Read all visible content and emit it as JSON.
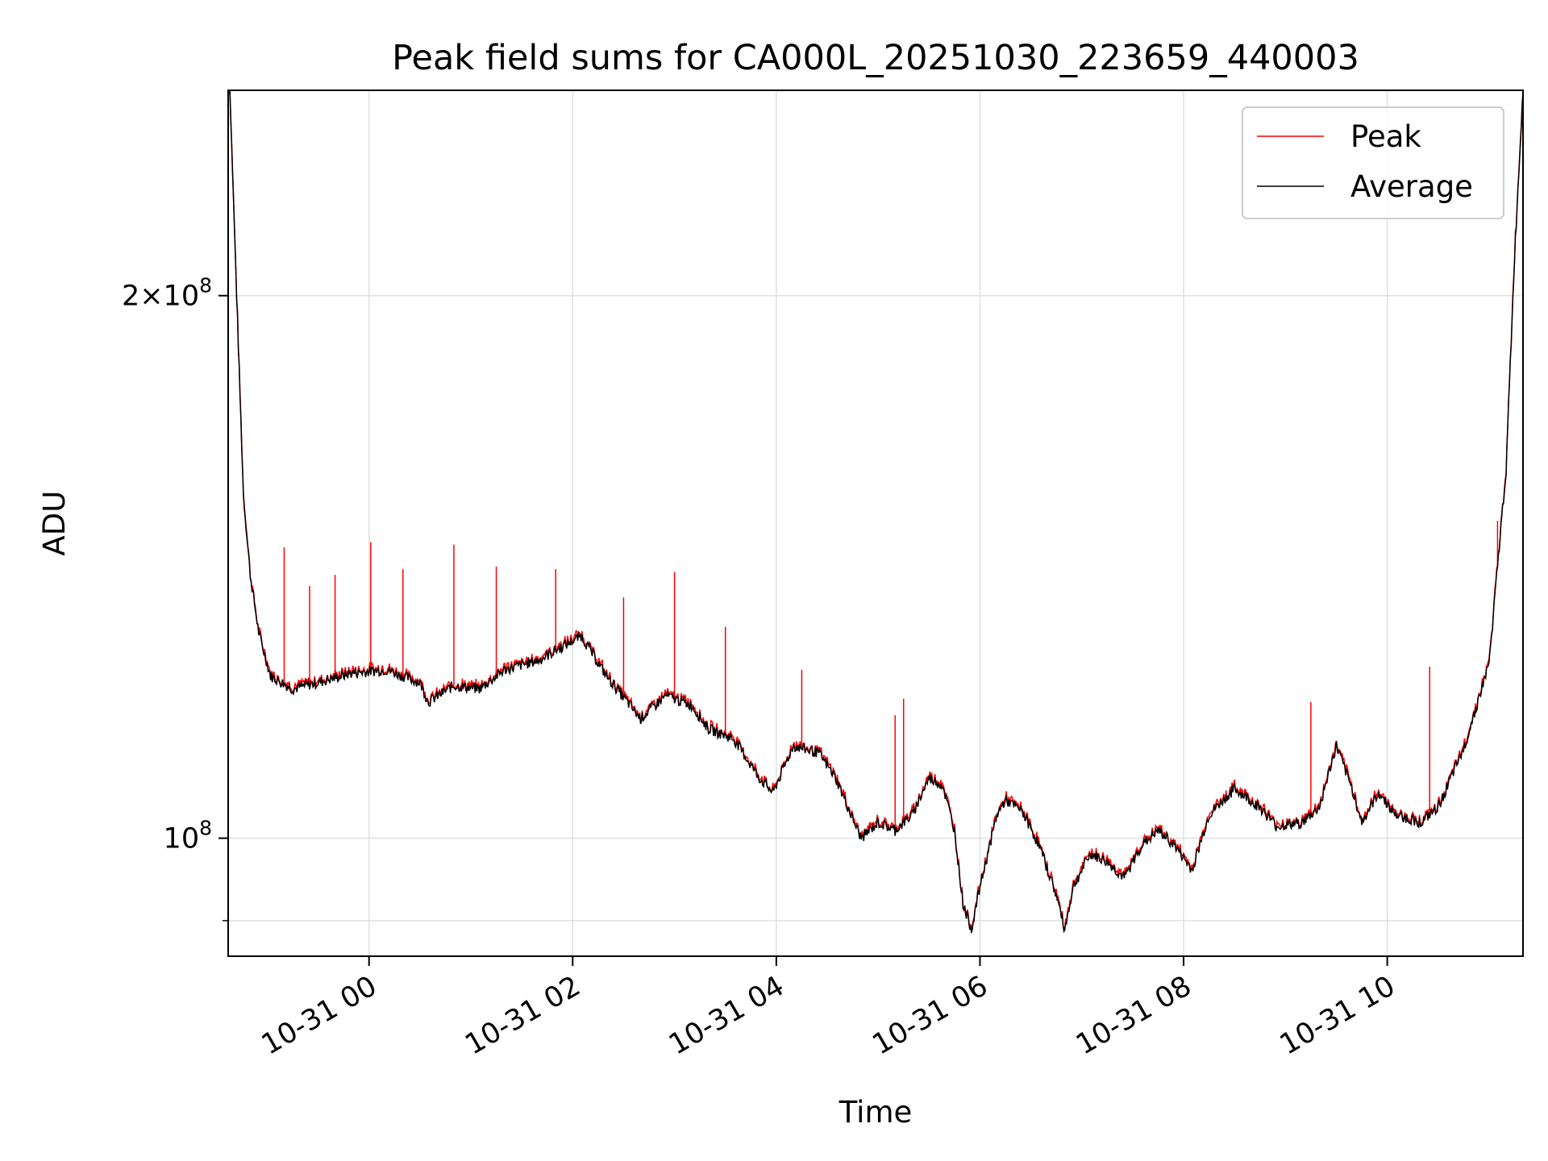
{
  "chart_data": {
    "type": "line",
    "title": "Peak field sums for CA000L_20251030_223659_440003",
    "xlabel": "Time",
    "ylabel": "ADU",
    "y_scale": "log",
    "x_range": [
      "10-30 22:37",
      "10-31 11:20"
    ],
    "ylim": [
      86000000.0,
      260000000.0
    ],
    "x_ticks": [
      "10-31 00",
      "10-31 02",
      "10-31 04",
      "10-31 06",
      "10-31 08",
      "10-31 10"
    ],
    "y_ticks": [
      {
        "value": 100000000,
        "base": "10",
        "exponent": "8",
        "mantissa": ""
      },
      {
        "value": 200000000,
        "base": "10",
        "exponent": "8",
        "mantissa": "2"
      }
    ],
    "grid": true,
    "legend_position": "top-right",
    "series": [
      {
        "name": "Peak",
        "color": "#ff0000"
      },
      {
        "name": "Average",
        "color": "#000000"
      }
    ],
    "average_profile": [
      [
        "10-30 22:38",
        260000000
      ],
      [
        "10-30 22:42",
        200000000
      ],
      [
        "10-30 22:46",
        155000000
      ],
      [
        "10-30 22:50",
        140000000
      ],
      [
        "10-30 22:55",
        130000000
      ],
      [
        "10-30 23:02",
        123000000
      ],
      [
        "10-30 23:15",
        121000000
      ],
      [
        "10-30 23:30",
        122000000
      ],
      [
        "10-30 23:50",
        123500000
      ],
      [
        "10-31 00:10",
        124000000
      ],
      [
        "10-31 00:30",
        122000000
      ],
      [
        "10-31 00:35",
        119000000
      ],
      [
        "10-31 00:50",
        121500000
      ],
      [
        "10-31 01:05",
        121000000
      ],
      [
        "10-31 01:20",
        124000000
      ],
      [
        "10-31 01:40",
        125500000
      ],
      [
        "10-31 02:05",
        129500000
      ],
      [
        "10-31 02:20",
        123000000
      ],
      [
        "10-31 02:40",
        116500000
      ],
      [
        "10-31 02:55",
        120000000
      ],
      [
        "10-31 03:10",
        118500000
      ],
      [
        "10-31 03:20",
        115000000
      ],
      [
        "10-31 03:35",
        113500000
      ],
      [
        "10-31 03:50",
        108000000
      ],
      [
        "10-31 03:58",
        106000000
      ],
      [
        "10-31 04:10",
        112500000
      ],
      [
        "10-31 04:25",
        111500000
      ],
      [
        "10-31 04:35",
        108000000
      ],
      [
        "10-31 04:45",
        102500000
      ],
      [
        "10-31 04:50",
        100000000
      ],
      [
        "10-31 05:00",
        102000000
      ],
      [
        "10-31 05:10",
        101000000
      ],
      [
        "10-31 05:20",
        103000000
      ],
      [
        "10-31 05:30",
        108000000
      ],
      [
        "10-31 05:38",
        107000000
      ],
      [
        "10-31 05:45",
        101000000
      ],
      [
        "10-31 05:50",
        92000000
      ],
      [
        "10-31 05:55",
        89000000
      ],
      [
        "10-31 06:00",
        94000000
      ],
      [
        "10-31 06:10",
        103000000
      ],
      [
        "10-31 06:15",
        105000000
      ],
      [
        "10-31 06:25",
        103500000
      ],
      [
        "10-31 06:35",
        99000000
      ],
      [
        "10-31 06:45",
        93000000
      ],
      [
        "10-31 06:50",
        89000000
      ],
      [
        "10-31 06:55",
        94000000
      ],
      [
        "10-31 07:05",
        98000000
      ],
      [
        "10-31 07:15",
        97000000
      ],
      [
        "10-31 07:25",
        95000000
      ],
      [
        "10-31 07:35",
        99000000
      ],
      [
        "10-31 07:45",
        101000000
      ],
      [
        "10-31 07:55",
        99000000
      ],
      [
        "10-31 08:05",
        96000000
      ],
      [
        "10-31 08:15",
        103000000
      ],
      [
        "10-31 08:30",
        106500000
      ],
      [
        "10-31 08:45",
        104000000
      ],
      [
        "10-31 08:55",
        101500000
      ],
      [
        "10-31 09:10",
        102000000
      ],
      [
        "10-31 09:20",
        104000000
      ],
      [
        "10-31 09:30",
        112500000
      ],
      [
        "10-31 09:40",
        106000000
      ],
      [
        "10-31 09:45",
        102000000
      ],
      [
        "10-31 09:55",
        106000000
      ],
      [
        "10-31 10:05",
        103000000
      ],
      [
        "10-31 10:20",
        102000000
      ],
      [
        "10-31 10:30",
        104000000
      ],
      [
        "10-31 10:45",
        112000000
      ],
      [
        "10-31 11:00",
        125000000
      ],
      [
        "10-31 11:10",
        160000000
      ],
      [
        "10-31 11:15",
        210000000
      ],
      [
        "10-31 11:20",
        260000000
      ]
    ],
    "peak_spikes": [
      [
        "10-30 23:10",
        145000000
      ],
      [
        "10-30 23:25",
        138000000
      ],
      [
        "10-30 23:40",
        140000000
      ],
      [
        "10-31 00:01",
        146000000
      ],
      [
        "10-31 00:20",
        141000000
      ],
      [
        "10-31 00:50",
        145500000
      ],
      [
        "10-31 01:15",
        141500000
      ],
      [
        "10-31 01:50",
        141000000
      ],
      [
        "10-31 02:30",
        136000000
      ],
      [
        "10-31 03:00",
        140500000
      ],
      [
        "10-31 03:30",
        131000000
      ],
      [
        "10-31 04:15",
        124000000
      ],
      [
        "10-31 05:10",
        117000000
      ],
      [
        "10-31 05:15",
        119500000
      ],
      [
        "10-31 09:15",
        119000000
      ],
      [
        "10-31 10:25",
        124500000
      ],
      [
        "10-31 11:05",
        150000000
      ]
    ]
  }
}
